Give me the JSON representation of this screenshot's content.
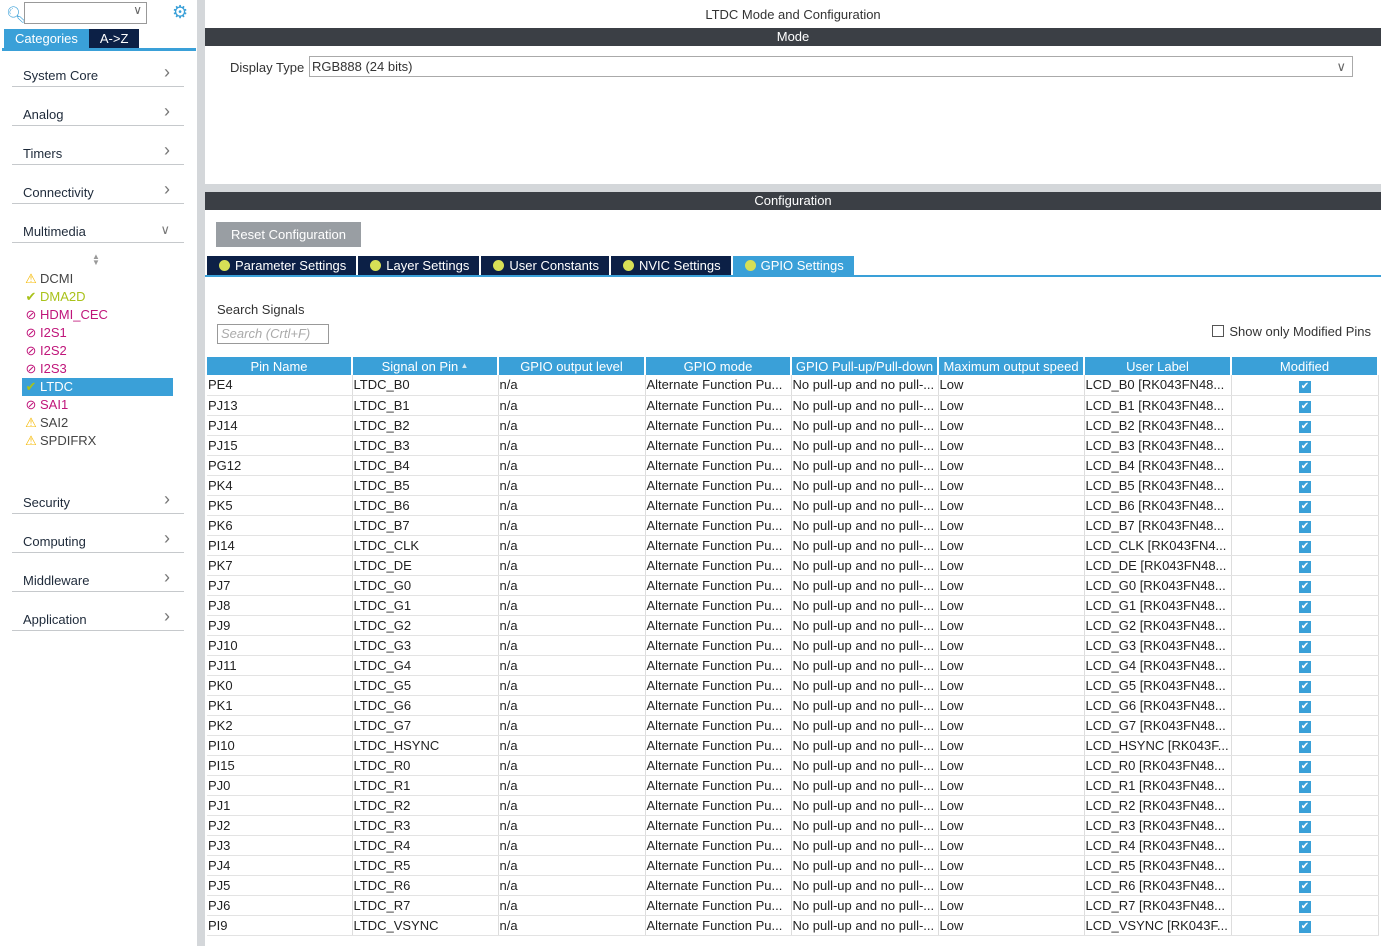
{
  "sidebar": {
    "search_value": "",
    "tabs": [
      "Categories",
      "A->Z"
    ],
    "categories_top": [
      "System Core",
      "Analog",
      "Timers",
      "Connectivity",
      "Multimedia"
    ],
    "multimedia_items": [
      {
        "label": "DCMI",
        "status": "warning",
        "color": "#444444"
      },
      {
        "label": "DMA2D",
        "status": "ok",
        "color": "#a9c21a"
      },
      {
        "label": "HDMI_CEC",
        "status": "disabled",
        "color": "#c0157a"
      },
      {
        "label": "I2S1",
        "status": "disabled",
        "color": "#c0157a"
      },
      {
        "label": "I2S2",
        "status": "disabled",
        "color": "#c0157a"
      },
      {
        "label": "I2S3",
        "status": "disabled",
        "color": "#c0157a"
      },
      {
        "label": "LTDC",
        "status": "ok",
        "color": "#ffffff",
        "selected": true
      },
      {
        "label": "SAI1",
        "status": "disabled",
        "color": "#c0157a"
      },
      {
        "label": "SAI2",
        "status": "warning",
        "color": "#444444"
      },
      {
        "label": "SPDIFRX",
        "status": "warning",
        "color": "#444444"
      }
    ],
    "categories_bottom": [
      "Security",
      "Computing",
      "Middleware",
      "Application"
    ]
  },
  "main": {
    "title": "LTDC Mode and Configuration",
    "mode_bar": "Mode",
    "display_type_label": "Display Type",
    "display_type_value": "RGB888 (24 bits)",
    "config_bar": "Configuration",
    "reset_label": "Reset Configuration",
    "tabs": [
      "Parameter Settings",
      "Layer Settings",
      "User Constants",
      "NVIC Settings",
      "GPIO Settings"
    ],
    "active_tab": "GPIO Settings",
    "search_label": "Search Signals",
    "search_placeholder": "Search (Crtl+F)",
    "show_modified_label": "Show only Modified Pins",
    "columns": [
      "Pin Name",
      "Signal on Pin",
      "GPIO output level",
      "GPIO mode",
      "GPIO Pull-up/Pull-down",
      "Maximum output speed",
      "User Label",
      "Modified"
    ],
    "rows": [
      [
        "PE4",
        "LTDC_B0",
        "LCD_B0 [RK043FN48..."
      ],
      [
        "PJ13",
        "LTDC_B1",
        "LCD_B1 [RK043FN48..."
      ],
      [
        "PJ14",
        "LTDC_B2",
        "LCD_B2 [RK043FN48..."
      ],
      [
        "PJ15",
        "LTDC_B3",
        "LCD_B3 [RK043FN48..."
      ],
      [
        "PG12",
        "LTDC_B4",
        "LCD_B4 [RK043FN48..."
      ],
      [
        "PK4",
        "LTDC_B5",
        "LCD_B5 [RK043FN48..."
      ],
      [
        "PK5",
        "LTDC_B6",
        "LCD_B6 [RK043FN48..."
      ],
      [
        "PK6",
        "LTDC_B7",
        "LCD_B7 [RK043FN48..."
      ],
      [
        "PI14",
        "LTDC_CLK",
        "LCD_CLK [RK043FN4..."
      ],
      [
        "PK7",
        "LTDC_DE",
        "LCD_DE [RK043FN48..."
      ],
      [
        "PJ7",
        "LTDC_G0",
        "LCD_G0 [RK043FN48..."
      ],
      [
        "PJ8",
        "LTDC_G1",
        "LCD_G1 [RK043FN48..."
      ],
      [
        "PJ9",
        "LTDC_G2",
        "LCD_G2 [RK043FN48..."
      ],
      [
        "PJ10",
        "LTDC_G3",
        "LCD_G3 [RK043FN48..."
      ],
      [
        "PJ11",
        "LTDC_G4",
        "LCD_G4 [RK043FN48..."
      ],
      [
        "PK0",
        "LTDC_G5",
        "LCD_G5 [RK043FN48..."
      ],
      [
        "PK1",
        "LTDC_G6",
        "LCD_G6 [RK043FN48..."
      ],
      [
        "PK2",
        "LTDC_G7",
        "LCD_G7 [RK043FN48..."
      ],
      [
        "PI10",
        "LTDC_HSYNC",
        "LCD_HSYNC [RK043F..."
      ],
      [
        "PI15",
        "LTDC_R0",
        "LCD_R0 [RK043FN48..."
      ],
      [
        "PJ0",
        "LTDC_R1",
        "LCD_R1 [RK043FN48..."
      ],
      [
        "PJ1",
        "LTDC_R2",
        "LCD_R2 [RK043FN48..."
      ],
      [
        "PJ2",
        "LTDC_R3",
        "LCD_R3 [RK043FN48..."
      ],
      [
        "PJ3",
        "LTDC_R4",
        "LCD_R4 [RK043FN48..."
      ],
      [
        "PJ4",
        "LTDC_R5",
        "LCD_R5 [RK043FN48..."
      ],
      [
        "PJ5",
        "LTDC_R6",
        "LCD_R6 [RK043FN48..."
      ],
      [
        "PJ6",
        "LTDC_R7",
        "LCD_R7 [RK043FN48..."
      ],
      [
        "PI9",
        "LTDC_VSYNC",
        "LCD_VSYNC [RK043F..."
      ]
    ],
    "common": {
      "level": "n/a",
      "mode": "Alternate Function Pu...",
      "pull": "No pull-up and no pull-...",
      "speed": "Low",
      "modified": true
    }
  },
  "colors": {
    "accent": "#3aa0d8",
    "navy": "#0c2046",
    "bar": "#3b3f45"
  }
}
